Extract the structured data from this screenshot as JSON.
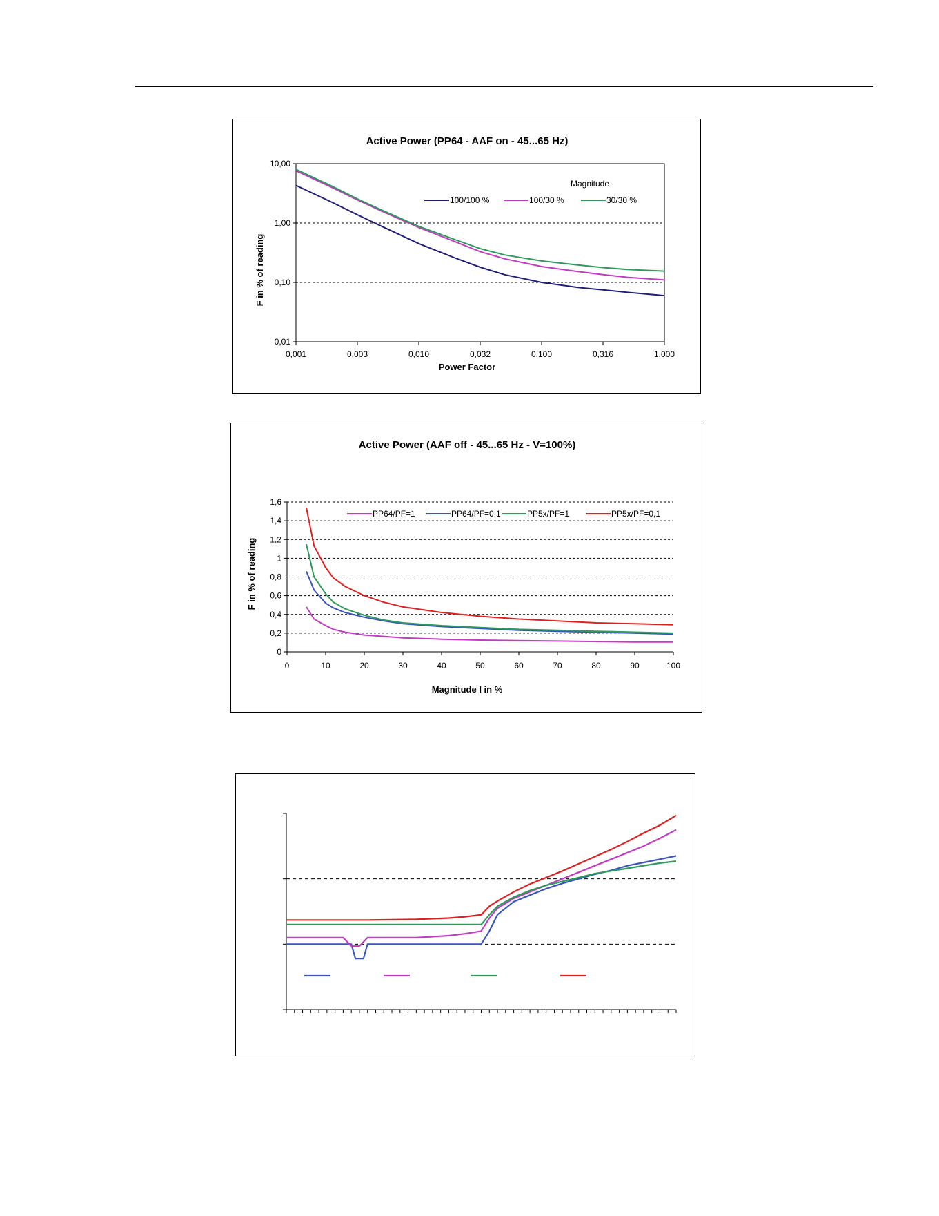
{
  "chart_data": [
    {
      "type": "line",
      "title": "Active Power (PP64 - AAF on - 45...65 Hz)",
      "xlabel": "Power Factor",
      "ylabel": "F in % of reading",
      "x_scale": "log",
      "y_scale": "log",
      "xlim": [
        0.001,
        1.0
      ],
      "ylim": [
        0.01,
        10.0
      ],
      "x_ticks": [
        {
          "value": 0.001,
          "label": "0,001"
        },
        {
          "value": 0.003162,
          "label": "0,003"
        },
        {
          "value": 0.01,
          "label": "0,010"
        },
        {
          "value": 0.03162,
          "label": "0,032"
        },
        {
          "value": 0.1,
          "label": "0,100"
        },
        {
          "value": 0.3162,
          "label": "0,316"
        },
        {
          "value": 1.0,
          "label": "1,000"
        }
      ],
      "y_ticks": [
        {
          "value": 0.01,
          "label": "0,01"
        },
        {
          "value": 0.1,
          "label": "0,10"
        },
        {
          "value": 1.0,
          "label": "1,00"
        },
        {
          "value": 10.0,
          "label": "10,00"
        }
      ],
      "grid": "horizontal-dashed",
      "legend_title": "Magnitude",
      "legend_position": "top-right",
      "series": [
        {
          "name": "100/100 %",
          "color": "#1f1f7a",
          "x": [
            0.001,
            0.002,
            0.003162,
            0.005,
            0.01,
            0.02,
            0.03162,
            0.05,
            0.1,
            0.2,
            0.3162,
            0.5,
            1.0
          ],
          "y": [
            4.3,
            2.2,
            1.38,
            0.88,
            0.45,
            0.255,
            0.18,
            0.135,
            0.1,
            0.082,
            0.075,
            0.068,
            0.06
          ]
        },
        {
          "name": "100/30 %",
          "color": "#c23bc2",
          "x": [
            0.001,
            0.002,
            0.003162,
            0.005,
            0.01,
            0.02,
            0.03162,
            0.05,
            0.1,
            0.2,
            0.3162,
            0.5,
            1.0
          ],
          "y": [
            7.6,
            3.9,
            2.45,
            1.58,
            0.84,
            0.48,
            0.33,
            0.25,
            0.185,
            0.152,
            0.135,
            0.122,
            0.11
          ]
        },
        {
          "name": "30/30 %",
          "color": "#2e9a5c",
          "x": [
            0.001,
            0.002,
            0.003162,
            0.005,
            0.01,
            0.02,
            0.03162,
            0.05,
            0.1,
            0.2,
            0.3162,
            0.5,
            1.0
          ],
          "y": [
            8.0,
            4.1,
            2.55,
            1.65,
            0.88,
            0.52,
            0.37,
            0.29,
            0.23,
            0.196,
            0.178,
            0.165,
            0.155
          ]
        }
      ]
    },
    {
      "type": "line",
      "title": "Active Power (AAF off - 45...65 Hz - V=100%)",
      "xlabel": "Magnitude I in %",
      "ylabel": "F in % of reading",
      "xlim": [
        0,
        100
      ],
      "ylim": [
        0,
        1.6
      ],
      "x_ticks": [
        {
          "value": 0,
          "label": "0"
        },
        {
          "value": 10,
          "label": "10"
        },
        {
          "value": 20,
          "label": "20"
        },
        {
          "value": 30,
          "label": "30"
        },
        {
          "value": 40,
          "label": "40"
        },
        {
          "value": 50,
          "label": "50"
        },
        {
          "value": 60,
          "label": "60"
        },
        {
          "value": 70,
          "label": "70"
        },
        {
          "value": 80,
          "label": "80"
        },
        {
          "value": 90,
          "label": "90"
        },
        {
          "value": 100,
          "label": "100"
        }
      ],
      "y_ticks": [
        {
          "value": 0,
          "label": "0"
        },
        {
          "value": 0.2,
          "label": "0,2"
        },
        {
          "value": 0.4,
          "label": "0,4"
        },
        {
          "value": 0.6,
          "label": "0,6"
        },
        {
          "value": 0.8,
          "label": "0,8"
        },
        {
          "value": 1.0,
          "label": "1"
        },
        {
          "value": 1.2,
          "label": "1,2"
        },
        {
          "value": 1.4,
          "label": "1,4"
        },
        {
          "value": 1.6,
          "label": "1,6"
        }
      ],
      "grid": "horizontal-dashed",
      "legend_position": "top",
      "series": [
        {
          "name": "PP64/PF=1",
          "color": "#c23bc2",
          "x": [
            5,
            7,
            10,
            12,
            15,
            20,
            25,
            30,
            40,
            50,
            60,
            70,
            80,
            90,
            100
          ],
          "y": [
            0.48,
            0.35,
            0.28,
            0.24,
            0.21,
            0.18,
            0.165,
            0.15,
            0.135,
            0.125,
            0.12,
            0.115,
            0.11,
            0.105,
            0.105
          ]
        },
        {
          "name": "PP64/PF=0,1",
          "color": "#3a55c0",
          "x": [
            5,
            7,
            10,
            12,
            15,
            20,
            25,
            30,
            40,
            50,
            60,
            70,
            80,
            90,
            100
          ],
          "y": [
            0.86,
            0.66,
            0.52,
            0.47,
            0.42,
            0.37,
            0.33,
            0.3,
            0.27,
            0.25,
            0.23,
            0.22,
            0.21,
            0.2,
            0.19
          ]
        },
        {
          "name": "PP5x/PF=1",
          "color": "#2e9a5c",
          "x": [
            5,
            7,
            10,
            12,
            15,
            20,
            25,
            30,
            40,
            50,
            60,
            70,
            80,
            90,
            100
          ],
          "y": [
            1.15,
            0.8,
            0.62,
            0.53,
            0.46,
            0.39,
            0.34,
            0.31,
            0.28,
            0.26,
            0.24,
            0.23,
            0.22,
            0.21,
            0.2
          ]
        },
        {
          "name": "PP5x/PF=0,1",
          "color": "#e02020",
          "x": [
            5,
            7,
            10,
            12,
            15,
            20,
            25,
            30,
            40,
            50,
            60,
            70,
            80,
            90,
            100
          ],
          "y": [
            1.54,
            1.13,
            0.9,
            0.79,
            0.7,
            0.6,
            0.53,
            0.48,
            0.42,
            0.38,
            0.35,
            0.33,
            0.31,
            0.3,
            0.29
          ]
        }
      ]
    },
    {
      "type": "line",
      "title": "",
      "xlabel": "",
      "ylabel": "",
      "xlim": [
        0,
        48
      ],
      "ylim": [
        0,
        3
      ],
      "x_tick_count": 48,
      "y_tick_values": [
        0,
        1,
        2,
        3
      ],
      "grid": "horizontal-dashed",
      "series": [
        {
          "color": "#3a55c0",
          "x": [
            0,
            8,
            8.5,
            9.5,
            10,
            20,
            24,
            25,
            26,
            28,
            30,
            32,
            34,
            36,
            38,
            40,
            42,
            44,
            46,
            48
          ],
          "y": [
            1.0,
            1.0,
            0.78,
            0.78,
            1.0,
            1.0,
            1.0,
            1.2,
            1.45,
            1.65,
            1.75,
            1.85,
            1.93,
            2.0,
            2.07,
            2.13,
            2.2,
            2.25,
            2.3,
            2.35
          ]
        },
        {
          "color": "#c23bc2",
          "x": [
            0,
            7,
            8,
            9,
            10,
            16,
            20,
            22,
            24,
            25,
            26,
            28,
            30,
            32,
            34,
            36,
            38,
            40,
            42,
            44,
            46,
            48
          ],
          "y": [
            1.1,
            1.1,
            0.97,
            0.97,
            1.1,
            1.1,
            1.13,
            1.16,
            1.2,
            1.4,
            1.55,
            1.7,
            1.8,
            1.9,
            2.0,
            2.1,
            2.2,
            2.3,
            2.4,
            2.5,
            2.62,
            2.75
          ]
        },
        {
          "color": "#2e9a5c",
          "x": [
            0,
            10,
            20,
            24,
            25,
            26,
            28,
            30,
            32,
            34,
            36,
            38,
            40,
            42,
            44,
            46,
            48
          ],
          "y": [
            1.3,
            1.3,
            1.3,
            1.3,
            1.45,
            1.58,
            1.72,
            1.82,
            1.9,
            1.96,
            2.02,
            2.08,
            2.12,
            2.16,
            2.2,
            2.24,
            2.27
          ]
        },
        {
          "color": "#e02020",
          "x": [
            0,
            10,
            16,
            20,
            22,
            24,
            25,
            26,
            28,
            30,
            32,
            34,
            36,
            38,
            40,
            42,
            44,
            46,
            48
          ],
          "y": [
            1.37,
            1.37,
            1.38,
            1.4,
            1.42,
            1.45,
            1.58,
            1.66,
            1.8,
            1.92,
            2.02,
            2.12,
            2.23,
            2.34,
            2.45,
            2.57,
            2.7,
            2.82,
            2.97
          ]
        }
      ]
    }
  ]
}
